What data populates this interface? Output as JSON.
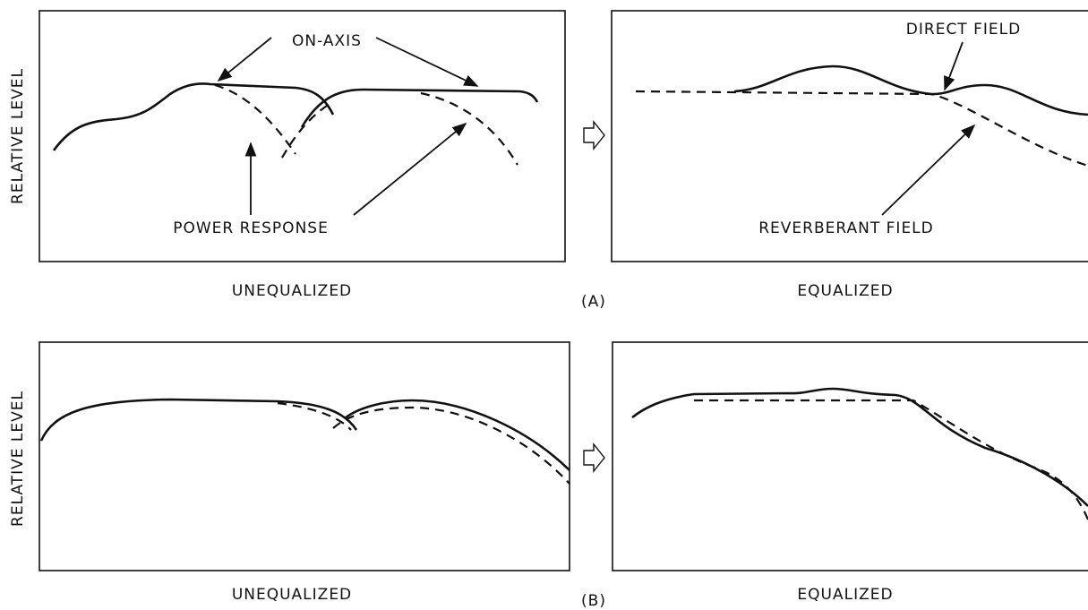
{
  "panels": [
    {
      "label": "(A)",
      "y_axis_label": "RELATIVE LEVEL",
      "left": {
        "caption": "UNEQUALIZED",
        "annotations": [
          "ON-AXIS",
          "POWER RESPONSE"
        ]
      },
      "right": {
        "caption": "EQUALIZED",
        "annotations": [
          "DIRECT FIELD",
          "REVERBERANT FIELD"
        ]
      }
    },
    {
      "label": "(B)",
      "y_axis_label": "RELATIVE LEVEL",
      "left": {
        "caption": "UNEQUALIZED"
      },
      "right": {
        "caption": "EQUALIZED"
      }
    }
  ]
}
